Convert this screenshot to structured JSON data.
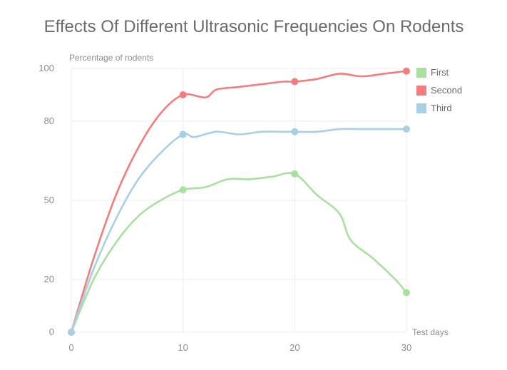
{
  "chart_data": {
    "type": "line",
    "title": "Effects Of Different Ultrasonic Frequencies On Rodents",
    "ylabel": "Percentage of rodents",
    "xlabel": "Test days",
    "x_ticks": [
      0,
      10,
      20,
      30
    ],
    "y_ticks": [
      0,
      20,
      50,
      80,
      100
    ],
    "xlim": [
      0,
      30
    ],
    "ylim": [
      0,
      100
    ],
    "grid": true,
    "legend_position": "top-right",
    "series": [
      {
        "name": "First",
        "color": "#a8e0a0",
        "x": [
          0,
          2,
          4,
          6,
          8,
          10,
          12,
          14,
          16,
          18,
          20,
          22,
          24,
          25,
          27,
          29,
          30
        ],
        "y": [
          0,
          20,
          34,
          44,
          50,
          54,
          55,
          58,
          58,
          59,
          60,
          52,
          45,
          35,
          28,
          20,
          15
        ],
        "markers": [
          [
            0,
            0
          ],
          [
            10,
            54
          ],
          [
            20,
            60
          ],
          [
            30,
            15
          ]
        ]
      },
      {
        "name": "Second",
        "color": "#f47c7c",
        "x": [
          0,
          2,
          4,
          6,
          8,
          10,
          12,
          13,
          15,
          17,
          19,
          20,
          22,
          24,
          26,
          28,
          30
        ],
        "y": [
          0,
          28,
          52,
          70,
          83,
          90,
          89,
          92,
          93,
          94,
          95,
          95,
          96,
          98,
          97,
          98,
          99
        ],
        "markers": [
          [
            0,
            0
          ],
          [
            10,
            90
          ],
          [
            20,
            95
          ],
          [
            30,
            99
          ]
        ]
      },
      {
        "name": "Third",
        "color": "#a9cfe4",
        "x": [
          0,
          2,
          4,
          6,
          8,
          10,
          11,
          13,
          15,
          17,
          19,
          20,
          22,
          24,
          26,
          28,
          30
        ],
        "y": [
          0,
          24,
          43,
          58,
          68,
          75,
          74,
          76,
          75,
          76,
          76,
          76,
          76,
          77,
          77,
          77,
          77
        ],
        "markers": [
          [
            0,
            0
          ],
          [
            10,
            75
          ],
          [
            20,
            76
          ],
          [
            30,
            77
          ]
        ]
      }
    ]
  }
}
